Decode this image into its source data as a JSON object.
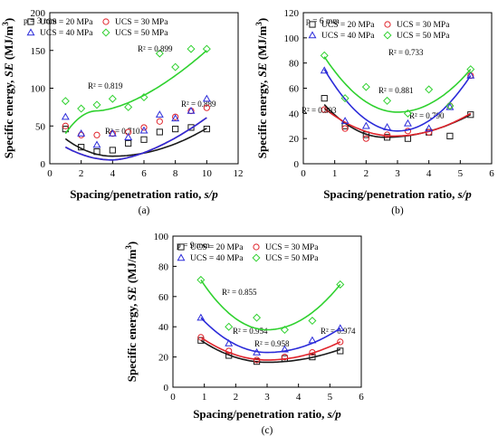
{
  "colors": {
    "UCS = 20 MPa": "#1a1a1a",
    "UCS = 30 MPa": "#e0232b",
    "UCS = 40 MPa": "#2b2bd9",
    "UCS = 50 MPa": "#2fd12f"
  },
  "marker_shapes": {
    "UCS = 20 MPa": "square",
    "UCS = 30 MPa": "circle",
    "UCS = 40 MPa": "triangle",
    "UCS = 50 MPa": "diamond"
  },
  "chart_data": [
    {
      "type": "scatter",
      "panel_label": "(a)",
      "annotation": "p = 3 mm",
      "xlabel": "Spacing/penetration ratio, s/p",
      "ylabel_prefix": "Specific energy, ",
      "ylabel_var": "SE",
      "ylabel_unit": " (MJ/m",
      "ylabel_sup": "3",
      "ylabel_close": ")",
      "xlim": [
        0,
        12
      ],
      "ylim": [
        0,
        200
      ],
      "xticks": [
        0,
        2,
        4,
        6,
        8,
        10,
        12
      ],
      "yticks": [
        0,
        50,
        100,
        150,
        200
      ],
      "legend": [
        "UCS = 20 MPa",
        "UCS = 30 MPa",
        "UCS = 40 MPa",
        "UCS = 50 MPa"
      ],
      "grid": false,
      "series": [
        {
          "name": "UCS = 20 MPa",
          "x": [
            1,
            2,
            3,
            4,
            5,
            6,
            7,
            8,
            9,
            10
          ],
          "y": [
            46,
            22,
            16,
            18,
            27,
            32,
            42,
            46,
            48,
            46
          ],
          "fit": [
            0.52,
            2.0,
            10.0,
            33.0,
            47.0
          ],
          "r2": "R² = 0.889"
        },
        {
          "name": "UCS = 30 MPa",
          "x": [
            1,
            2,
            3,
            4,
            5,
            6,
            7,
            8,
            9,
            10
          ],
          "y": [
            50,
            38,
            38,
            40,
            42,
            48,
            56,
            62,
            70,
            74
          ],
          "fit": [
            0.05,
            0.2,
            5.0,
            22.0,
            61.0
          ],
          "r2": "R² = 0.710"
        },
        {
          "name": "UCS = 40 MPa",
          "x": [
            1,
            2,
            3,
            4,
            5,
            6,
            7,
            8,
            9,
            10
          ],
          "y": [
            62,
            40,
            25,
            40,
            35,
            44,
            65,
            60,
            70,
            86
          ],
          "fit": [
            0.05,
            0.2,
            5.0,
            22.0,
            61.0
          ],
          "r2": "R² = 0.819"
        },
        {
          "name": "UCS = 50 MPa",
          "x": [
            1,
            2,
            3,
            4,
            5,
            6,
            7,
            8,
            9,
            10
          ],
          "y": [
            83,
            73,
            78,
            86,
            75,
            88,
            146,
            128,
            152,
            152
          ],
          "fit": [
            0.8,
            1.0,
            70.0,
            40.0,
            150.0
          ],
          "r2": "R² = 0.899"
        }
      ]
    },
    {
      "type": "scatter",
      "panel_label": "(b)",
      "annotation": "p = 6 mm",
      "xlabel": "Spacing/penetration ratio, s/p",
      "ylabel_prefix": "Specific energy, ",
      "ylabel_var": "SE",
      "ylabel_unit": " (MJ/m",
      "ylabel_sup": "3",
      "ylabel_close": ")",
      "xlim": [
        0,
        6
      ],
      "ylim": [
        0,
        120
      ],
      "xticks": [
        0,
        1,
        2,
        3,
        4,
        5,
        6
      ],
      "yticks": [
        0,
        20,
        40,
        60,
        80,
        100,
        120
      ],
      "legend": [
        "UCS = 20 MPa",
        "UCS = 30 MPa",
        "UCS = 40 MPa",
        "UCS = 50 MPa"
      ],
      "grid": false,
      "series": [
        {
          "name": "UCS = 20 MPa",
          "x": [
            0.67,
            1.33,
            2.0,
            2.67,
            3.33,
            4.0,
            4.67,
            5.33
          ],
          "y": [
            52,
            30,
            23,
            21,
            20,
            25,
            22,
            39
          ],
          "fit": [
            2.6,
            3.0,
            21.0,
            47.0,
            39.0
          ],
          "r2": "R² = 0.790"
        },
        {
          "name": "UCS = 30 MPa",
          "x": [
            0.67,
            1.33,
            2.0,
            2.67,
            3.33,
            4.0,
            4.67,
            5.33
          ],
          "y": [
            43,
            28,
            20,
            23,
            26,
            25,
            46,
            70
          ],
          "fit": [
            2.9,
            2.5,
            22.0,
            44.0,
            40.0
          ],
          "r2": "R² = 0.803"
        },
        {
          "name": "UCS = 40 MPa",
          "x": [
            0.67,
            1.33,
            2.0,
            2.67,
            3.33,
            4.0,
            4.67,
            5.33
          ],
          "y": [
            74,
            34,
            30,
            29,
            32,
            28,
            45,
            70
          ],
          "fit": [
            3.0,
            2.5,
            26.0,
            75.0,
            70.0
          ],
          "r2": "R² = 0.881"
        },
        {
          "name": "UCS = 50 MPa",
          "x": [
            0.67,
            1.33,
            2.0,
            2.67,
            3.33,
            4.0,
            4.67,
            5.33
          ],
          "y": [
            86,
            52,
            61,
            50,
            40,
            59,
            46,
            75
          ],
          "fit": [
            3.0,
            2.5,
            41.0,
            85.0,
            75.0
          ],
          "r2": "R² = 0.733"
        }
      ]
    },
    {
      "type": "scatter",
      "panel_label": "(c)",
      "annotation": "p = 9 mm",
      "xlabel": "Spacing/penetration ratio, s/p",
      "ylabel_prefix": "Specific energy, ",
      "ylabel_var": "SE",
      "ylabel_unit": " (MJ/m",
      "ylabel_sup": "3",
      "ylabel_close": ")",
      "xlim": [
        0,
        6
      ],
      "ylim": [
        0,
        100
      ],
      "xticks": [
        0,
        1,
        2,
        3,
        4,
        5,
        6
      ],
      "yticks": [
        0,
        20,
        40,
        60,
        80,
        100
      ],
      "legend": [
        "UCS = 20 MPa",
        "UCS = 30 MPa",
        "UCS = 40 MPa",
        "UCS = 50 MPa"
      ],
      "grid": false,
      "series": [
        {
          "name": "UCS = 20 MPa",
          "x": [
            0.89,
            1.78,
            2.67,
            3.56,
            4.44,
            5.33
          ],
          "y": [
            31,
            21,
            17,
            19,
            20,
            24
          ],
          "fit": [
            3.0,
            2.5,
            16.5,
            31.0,
            25.0
          ],
          "r2": "R² = 0.958"
        },
        {
          "name": "UCS = 30 MPa",
          "x": [
            0.89,
            1.78,
            2.67,
            3.56,
            4.44,
            5.33
          ],
          "y": [
            33,
            24,
            18,
            20,
            23,
            30
          ],
          "fit": [
            3.0,
            2.5,
            18.0,
            33.0,
            30.0
          ],
          "r2": "R² = 0.974"
        },
        {
          "name": "UCS = 40 MPa",
          "x": [
            0.89,
            1.78,
            2.67,
            3.56,
            4.44,
            5.33
          ],
          "y": [
            46,
            29,
            23,
            25,
            31,
            39
          ],
          "fit": [
            3.0,
            2.5,
            23.0,
            46.0,
            39.0
          ],
          "r2": "R² = 0.954"
        },
        {
          "name": "UCS = 50 MPa",
          "x": [
            0.89,
            1.78,
            2.67,
            3.56,
            4.44,
            5.33
          ],
          "y": [
            71,
            40,
            46,
            38,
            44,
            68
          ],
          "fit": [
            3.0,
            2.5,
            38.0,
            71.0,
            68.0
          ],
          "r2": "R² = 0.855"
        }
      ]
    }
  ]
}
